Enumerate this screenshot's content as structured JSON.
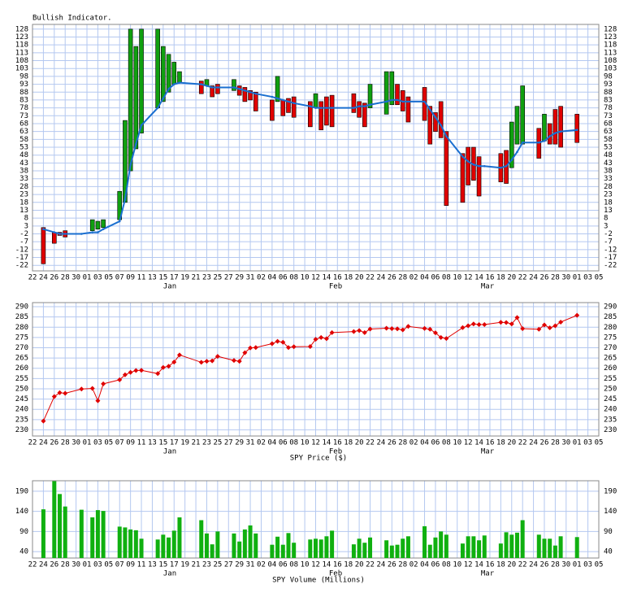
{
  "x_axis": {
    "xlim": [
      0,
      104
    ],
    "x": [
      2,
      4,
      5,
      6,
      9,
      11,
      12,
      13,
      16,
      17,
      18,
      19,
      20,
      23,
      24,
      25,
      26,
      27,
      31,
      32,
      33,
      34,
      37,
      38,
      39,
      40,
      41,
      44,
      45,
      46,
      47,
      48,
      51,
      52,
      53,
      54,
      55,
      59,
      60,
      61,
      62,
      65,
      66,
      67,
      68,
      69,
      72,
      73,
      74,
      75,
      76,
      79,
      80,
      81,
      82,
      83,
      86,
      87,
      88,
      89,
      90,
      93,
      94,
      95,
      96,
      97,
      100
    ],
    "xticks": [
      {
        "value": 0,
        "label": "22"
      },
      {
        "value": 2,
        "label": "24"
      },
      {
        "value": 4,
        "label": "26"
      },
      {
        "value": 6,
        "label": "28"
      },
      {
        "value": 8,
        "label": "30"
      },
      {
        "value": 10,
        "label": "01"
      },
      {
        "value": 12,
        "label": "03"
      },
      {
        "value": 14,
        "label": "05"
      },
      {
        "value": 16,
        "label": "07"
      },
      {
        "value": 18,
        "label": "09"
      },
      {
        "value": 20,
        "label": "11"
      },
      {
        "value": 22,
        "label": "13"
      },
      {
        "value": 24,
        "label": "15"
      },
      {
        "value": 26,
        "label": "17"
      },
      {
        "value": 28,
        "label": "19"
      },
      {
        "value": 30,
        "label": "21"
      },
      {
        "value": 32,
        "label": "23"
      },
      {
        "value": 34,
        "label": "25"
      },
      {
        "value": 36,
        "label": "27"
      },
      {
        "value": 38,
        "label": "29"
      },
      {
        "value": 40,
        "label": "31"
      },
      {
        "value": 42,
        "label": "02"
      },
      {
        "value": 44,
        "label": "04"
      },
      {
        "value": 46,
        "label": "06"
      },
      {
        "value": 48,
        "label": "08"
      },
      {
        "value": 50,
        "label": "10"
      },
      {
        "value": 52,
        "label": "12"
      },
      {
        "value": 54,
        "label": "14"
      },
      {
        "value": 56,
        "label": "16"
      },
      {
        "value": 58,
        "label": "18"
      },
      {
        "value": 60,
        "label": "20"
      },
      {
        "value": 62,
        "label": "22"
      },
      {
        "value": 64,
        "label": "24"
      },
      {
        "value": 66,
        "label": "26"
      },
      {
        "value": 68,
        "label": "28"
      },
      {
        "value": 70,
        "label": "02"
      },
      {
        "value": 72,
        "label": "04"
      },
      {
        "value": 74,
        "label": "06"
      },
      {
        "value": 76,
        "label": "08"
      },
      {
        "value": 78,
        "label": "10"
      },
      {
        "value": 80,
        "label": "12"
      },
      {
        "value": 82,
        "label": "14"
      },
      {
        "value": 84,
        "label": "16"
      },
      {
        "value": 86,
        "label": "18"
      },
      {
        "value": 88,
        "label": "20"
      },
      {
        "value": 90,
        "label": "22"
      },
      {
        "value": 92,
        "label": "24"
      },
      {
        "value": 94,
        "label": "26"
      },
      {
        "value": 96,
        "label": "28"
      },
      {
        "value": 98,
        "label": "30"
      },
      {
        "value": 100,
        "label": "01"
      },
      {
        "value": 102,
        "label": "03"
      },
      {
        "value": 104,
        "label": "05"
      }
    ],
    "months": [
      "Jan",
      "Feb",
      "Mar"
    ]
  },
  "chart_data": [
    {
      "type": "range-bar",
      "title": "Bullish Indicator.",
      "low": [
        -21,
        -8,
        -3,
        -4,
        null,
        0,
        1,
        2,
        7,
        18,
        38,
        52,
        62,
        78,
        82,
        88,
        93,
        94,
        87,
        92,
        85,
        87,
        89,
        86,
        82,
        83,
        76,
        70,
        82,
        73,
        75,
        72,
        66,
        78,
        64,
        67,
        66,
        75,
        72,
        66,
        78,
        74,
        80,
        80,
        76,
        69,
        70,
        55,
        63,
        59,
        16,
        18,
        29,
        32,
        22,
        null,
        31,
        30,
        40,
        55,
        55,
        46,
        57,
        55,
        55,
        53,
        56
      ],
      "high": [
        2,
        -1,
        -1,
        0,
        null,
        7,
        6,
        7,
        25,
        70,
        128,
        117,
        128,
        128,
        117,
        112,
        107,
        101,
        95,
        96,
        92,
        93,
        96,
        92,
        91,
        89,
        88,
        83,
        98,
        83,
        84,
        85,
        82,
        87,
        82,
        85,
        86,
        87,
        82,
        81,
        93,
        101,
        101,
        93,
        89,
        85,
        91,
        79,
        75,
        82,
        63,
        49,
        53,
        53,
        47,
        null,
        49,
        51,
        69,
        79,
        92,
        65,
        74,
        68,
        77,
        79,
        74
      ],
      "colors": [
        "#e00000",
        "#e00000",
        "#e00000",
        "#e00000",
        "#e00000",
        "#10a010",
        "#10a010",
        "#10a010",
        "#10a010",
        "#10a010",
        "#10a010",
        "#10a010",
        "#10a010",
        "#10a010",
        "#10a010",
        "#10a010",
        "#10a010",
        "#10a010",
        "#e00000",
        "#10a010",
        "#e00000",
        "#e00000",
        "#10a010",
        "#e00000",
        "#e00000",
        "#e00000",
        "#e00000",
        "#e00000",
        "#10a010",
        "#e00000",
        "#e00000",
        "#e00000",
        "#e00000",
        "#10a010",
        "#e00000",
        "#e00000",
        "#e00000",
        "#e00000",
        "#e00000",
        "#e00000",
        "#10a010",
        "#10a010",
        "#10a010",
        "#e00000",
        "#e00000",
        "#e00000",
        "#e00000",
        "#e00000",
        "#e00000",
        "#e00000",
        "#e00000",
        "#e00000",
        "#e00000",
        "#e00000",
        "#e00000",
        "#e00000",
        "#e00000",
        "#e00000",
        "#10a010",
        "#10a010",
        "#10a010",
        "#e00000",
        "#10a010",
        "#e00000",
        "#e00000",
        "#e00000",
        "#e00000"
      ],
      "average": {
        "color": "#1a6fd0",
        "values": [
          1,
          -1,
          -2,
          -2,
          -2,
          -1,
          -1,
          1,
          6,
          20,
          42,
          55,
          67,
          78,
          84,
          90,
          93,
          94,
          93,
          92,
          91,
          91,
          91,
          90,
          89,
          88,
          87,
          85,
          84,
          83,
          82,
          81,
          79,
          78,
          78,
          78,
          78,
          78,
          79,
          79,
          80,
          82,
          83,
          83,
          82,
          82,
          82,
          77,
          72,
          67,
          60,
          47,
          44,
          42,
          41,
          41,
          40,
          41,
          45,
          50,
          56,
          56,
          57,
          60,
          62,
          63,
          64
        ]
      },
      "ylim": [
        -25.5,
        131
      ],
      "yticks": [
        -22,
        -17,
        -12,
        -7,
        -2,
        3,
        8,
        13,
        18,
        23,
        28,
        33,
        38,
        43,
        48,
        53,
        58,
        63,
        68,
        73,
        78,
        83,
        88,
        93,
        98,
        103,
        108,
        113,
        118,
        123,
        128
      ],
      "grid": true
    },
    {
      "type": "line",
      "xlabel": "SPY Price ($)",
      "color": "#e00000",
      "values": [
        234.3,
        246.2,
        248.1,
        247.8,
        249.9,
        250.2,
        244.2,
        252.4,
        254.4,
        256.8,
        258.0,
        258.9,
        259.0,
        257.4,
        260.4,
        261.0,
        263.0,
        266.5,
        262.9,
        263.4,
        263.6,
        265.8,
        263.8,
        263.4,
        267.6,
        269.9,
        270.1,
        272.0,
        273.1,
        272.7,
        270.1,
        270.5,
        270.6,
        274.1,
        275.0,
        274.4,
        277.4,
        277.9,
        278.4,
        277.4,
        279.1,
        279.5,
        279.3,
        279.2,
        278.7,
        280.4,
        279.4,
        279.0,
        277.3,
        275.0,
        274.5,
        279.8,
        280.7,
        281.6,
        281.3,
        281.3,
        282.4,
        282.3,
        281.6,
        284.7,
        279.3,
        279.0,
        281.1,
        279.7,
        280.7,
        282.5,
        285.8
      ],
      "ylim": [
        227,
        292
      ],
      "yticks": [
        230,
        235,
        240,
        245,
        250,
        255,
        260,
        265,
        270,
        275,
        280,
        285,
        290
      ],
      "grid": true
    },
    {
      "type": "bar",
      "xlabel": "SPY Volume (Millions)",
      "color": "#10b010",
      "values": [
        145,
        215,
        183,
        152,
        144,
        125,
        143,
        141,
        102,
        100,
        95,
        93,
        72,
        70,
        82,
        75,
        92,
        125,
        118,
        85,
        58,
        90,
        85,
        65,
        95,
        105,
        85,
        57,
        77,
        57,
        86,
        62,
        70,
        72,
        70,
        78,
        92,
        58,
        72,
        62,
        75,
        68,
        55,
        57,
        72,
        78,
        103,
        57,
        75,
        90,
        82,
        60,
        78,
        78,
        68,
        80,
        60,
        88,
        82,
        87,
        118,
        82,
        72,
        72,
        55,
        78,
        76
      ],
      "ylim": [
        24,
        216
      ],
      "yticks": [
        40,
        90,
        140,
        190
      ],
      "grid": true
    }
  ]
}
